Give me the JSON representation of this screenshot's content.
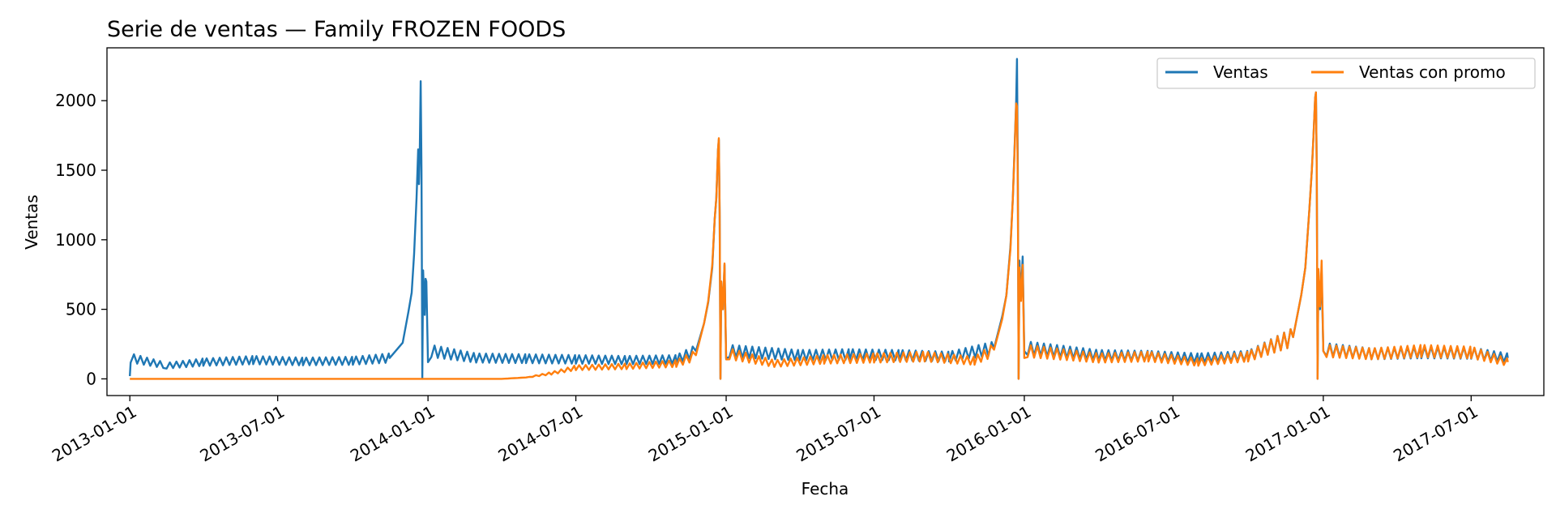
{
  "chart_data": {
    "type": "line",
    "title": "Serie de ventas — Family FROZEN FOODS",
    "xlabel": "Fecha",
    "ylabel": "Ventas",
    "x_range": [
      "2012-12-04",
      "2017-09-28"
    ],
    "ylim": [
      -120,
      2380
    ],
    "y_ticks": [
      0,
      500,
      1000,
      1500,
      2000
    ],
    "x_ticks": [
      "2013-01-01",
      "2013-07-01",
      "2014-01-01",
      "2014-07-01",
      "2015-01-01",
      "2015-07-01",
      "2016-01-01",
      "2016-07-01",
      "2017-01-01",
      "2017-07-01"
    ],
    "grid": false,
    "legend": {
      "position": "top-right",
      "ncol": 2
    },
    "series": [
      {
        "name": "Ventas",
        "color": "#1f77b4",
        "points": [
          [
            "2013-01-01",
            20
          ],
          [
            "2013-01-02",
            150
          ],
          [
            "2013-02-15",
            95
          ],
          [
            "2013-04-01",
            120
          ],
          [
            "2013-06-01",
            135
          ],
          [
            "2013-08-01",
            125
          ],
          [
            "2013-10-01",
            130
          ],
          [
            "2013-11-15",
            150
          ],
          [
            "2013-12-01",
            260
          ],
          [
            "2013-12-08",
            480
          ],
          [
            "2013-12-12",
            620
          ],
          [
            "2013-12-15",
            900
          ],
          [
            "2013-12-18",
            1300
          ],
          [
            "2013-12-20",
            1650
          ],
          [
            "2013-12-21",
            1400
          ],
          [
            "2013-12-22",
            1650
          ],
          [
            "2013-12-23",
            2140
          ],
          [
            "2013-12-24",
            1500
          ],
          [
            "2013-12-25",
            0
          ],
          [
            "2013-12-26",
            780
          ],
          [
            "2013-12-28",
            460
          ],
          [
            "2013-12-29",
            720
          ],
          [
            "2013-12-30",
            700
          ],
          [
            "2014-01-01",
            120
          ],
          [
            "2014-01-05",
            200
          ],
          [
            "2014-03-01",
            150
          ],
          [
            "2014-05-01",
            145
          ],
          [
            "2014-07-01",
            140
          ],
          [
            "2014-09-01",
            135
          ],
          [
            "2014-11-01",
            140
          ],
          [
            "2014-11-25",
            200
          ],
          [
            "2014-12-05",
            400
          ],
          [
            "2014-12-10",
            550
          ],
          [
            "2014-12-15",
            800
          ],
          [
            "2014-12-18",
            1150
          ],
          [
            "2014-12-20",
            1300
          ],
          [
            "2014-12-22",
            1650
          ],
          [
            "2014-12-23",
            1720
          ],
          [
            "2014-12-24",
            1200
          ],
          [
            "2014-12-25",
            0
          ],
          [
            "2014-12-26",
            700
          ],
          [
            "2014-12-28",
            500
          ],
          [
            "2014-12-30",
            820
          ],
          [
            "2015-01-01",
            150
          ],
          [
            "2015-01-05",
            200
          ],
          [
            "2015-04-01",
            170
          ],
          [
            "2015-06-01",
            175
          ],
          [
            "2015-08-01",
            170
          ],
          [
            "2015-10-01",
            160
          ],
          [
            "2015-11-25",
            220
          ],
          [
            "2015-12-05",
            450
          ],
          [
            "2015-12-10",
            600
          ],
          [
            "2015-12-15",
            950
          ],
          [
            "2015-12-18",
            1300
          ],
          [
            "2015-12-20",
            1640
          ],
          [
            "2015-12-22",
            2000
          ],
          [
            "2015-12-23",
            2300
          ],
          [
            "2015-12-24",
            1500
          ],
          [
            "2015-12-25",
            0
          ],
          [
            "2015-12-26",
            850
          ],
          [
            "2015-12-28",
            600
          ],
          [
            "2015-12-30",
            880
          ],
          [
            "2016-01-01",
            200
          ],
          [
            "2016-01-05",
            220
          ],
          [
            "2016-04-01",
            170
          ],
          [
            "2016-06-01",
            165
          ],
          [
            "2016-08-01",
            150
          ],
          [
            "2016-10-01",
            165
          ],
          [
            "2016-11-25",
            300
          ],
          [
            "2016-12-05",
            600
          ],
          [
            "2016-12-10",
            800
          ],
          [
            "2016-12-15",
            1220
          ],
          [
            "2016-12-18",
            1500
          ],
          [
            "2016-12-20",
            1750
          ],
          [
            "2016-12-22",
            2020
          ],
          [
            "2016-12-23",
            2060
          ],
          [
            "2016-12-24",
            1500
          ],
          [
            "2016-12-25",
            0
          ],
          [
            "2016-12-26",
            780
          ],
          [
            "2016-12-28",
            500
          ],
          [
            "2016-12-30",
            760
          ],
          [
            "2017-01-01",
            200
          ],
          [
            "2017-01-05",
            210
          ],
          [
            "2017-03-01",
            180
          ],
          [
            "2017-05-01",
            190
          ],
          [
            "2017-07-01",
            185
          ],
          [
            "2017-08-15",
            150
          ]
        ]
      },
      {
        "name": "Ventas con promo",
        "color": "#ff7f0e",
        "points": [
          [
            "2013-01-01",
            0
          ],
          [
            "2014-04-01",
            0
          ],
          [
            "2014-05-01",
            10
          ],
          [
            "2014-06-01",
            40
          ],
          [
            "2014-07-01",
            80
          ],
          [
            "2014-09-01",
            90
          ],
          [
            "2014-11-01",
            110
          ],
          [
            "2014-11-25",
            170
          ],
          [
            "2014-12-05",
            400
          ],
          [
            "2014-12-10",
            560
          ],
          [
            "2014-12-15",
            820
          ],
          [
            "2014-12-18",
            1150
          ],
          [
            "2014-12-20",
            1300
          ],
          [
            "2014-12-22",
            1650
          ],
          [
            "2014-12-23",
            1730
          ],
          [
            "2014-12-24",
            1200
          ],
          [
            "2014-12-25",
            0
          ],
          [
            "2014-12-26",
            700
          ],
          [
            "2014-12-28",
            500
          ],
          [
            "2014-12-30",
            830
          ],
          [
            "2015-01-01",
            140
          ],
          [
            "2015-01-05",
            180
          ],
          [
            "2015-03-01",
            110
          ],
          [
            "2015-05-01",
            140
          ],
          [
            "2015-07-01",
            150
          ],
          [
            "2015-09-01",
            160
          ],
          [
            "2015-11-01",
            130
          ],
          [
            "2015-11-25",
            210
          ],
          [
            "2015-12-05",
            430
          ],
          [
            "2015-12-10",
            600
          ],
          [
            "2015-12-15",
            930
          ],
          [
            "2015-12-18",
            1300
          ],
          [
            "2015-12-20",
            1620
          ],
          [
            "2015-12-22",
            1980
          ],
          [
            "2015-12-23",
            1960
          ],
          [
            "2015-12-24",
            1400
          ],
          [
            "2015-12-25",
            0
          ],
          [
            "2015-12-26",
            800
          ],
          [
            "2015-12-28",
            560
          ],
          [
            "2015-12-30",
            820
          ],
          [
            "2016-01-01",
            150
          ],
          [
            "2016-01-05",
            200
          ],
          [
            "2016-04-01",
            150
          ],
          [
            "2016-06-01",
            160
          ],
          [
            "2016-08-01",
            120
          ],
          [
            "2016-10-01",
            160
          ],
          [
            "2016-11-25",
            300
          ],
          [
            "2016-12-05",
            600
          ],
          [
            "2016-12-10",
            800
          ],
          [
            "2016-12-15",
            1220
          ],
          [
            "2016-12-18",
            1500
          ],
          [
            "2016-12-20",
            1750
          ],
          [
            "2016-12-22",
            2020
          ],
          [
            "2016-12-23",
            2060
          ],
          [
            "2016-12-24",
            1500
          ],
          [
            "2016-12-25",
            0
          ],
          [
            "2016-12-26",
            790
          ],
          [
            "2016-12-28",
            520
          ],
          [
            "2016-12-30",
            850
          ],
          [
            "2017-01-01",
            200
          ],
          [
            "2017-01-05",
            200
          ],
          [
            "2017-03-01",
            180
          ],
          [
            "2017-05-01",
            200
          ],
          [
            "2017-07-01",
            190
          ],
          [
            "2017-08-15",
            120
          ]
        ]
      }
    ]
  }
}
